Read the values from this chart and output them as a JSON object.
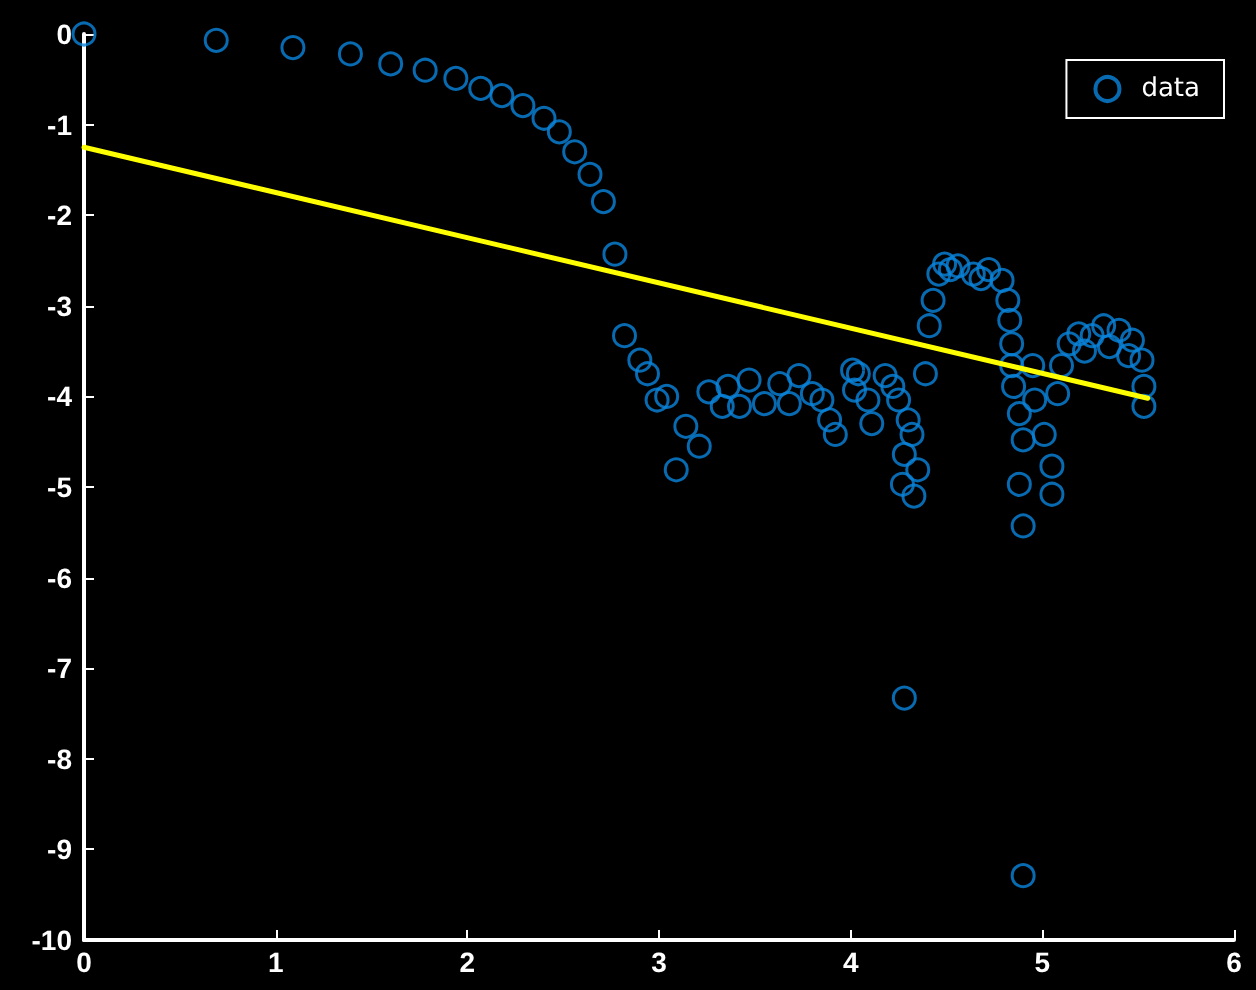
{
  "chart_data": {
    "type": "scatter",
    "xlim": [
      0,
      6
    ],
    "ylim": [
      -10,
      0
    ],
    "xticks": [
      0,
      1,
      2,
      3,
      4,
      5,
      6
    ],
    "yticks": [
      -10,
      -9,
      -8,
      -7,
      -6,
      -5,
      -4,
      -3,
      -2,
      -1,
      0
    ],
    "grid": false,
    "legend": "top right",
    "marker": "circle",
    "series": [
      {
        "name": "data",
        "color": "#0a84dc",
        "x": [
          0,
          0.69,
          1.09,
          1.39,
          1.6,
          1.78,
          1.94,
          2.07,
          2.18,
          2.29,
          2.4,
          2.48,
          2.56,
          2.64,
          2.71,
          2.77,
          2.82,
          2.9,
          2.94,
          2.99,
          3.04,
          3.14,
          3.21,
          3.09,
          3.26,
          3.36,
          3.33,
          3.42,
          3.47,
          3.55,
          3.63,
          3.68,
          3.73,
          3.8,
          3.85,
          3.89,
          3.92,
          4.01,
          4.02,
          4.04,
          4.09,
          4.11,
          4.18,
          4.22,
          4.25,
          4.3,
          4.32,
          4.28,
          4.35,
          4.27,
          4.33,
          4.28,
          4.39,
          4.41,
          4.43,
          4.46,
          4.49,
          4.52,
          4.56,
          4.64,
          4.68,
          4.72,
          4.79,
          4.82,
          4.83,
          4.84,
          4.84,
          4.85,
          4.88,
          4.9,
          4.88,
          4.9,
          4.9,
          4.95,
          4.96,
          5.01,
          5.05,
          5.05,
          5.08,
          5.1,
          5.14,
          5.19,
          5.22,
          5.26,
          5.32,
          5.35,
          5.4,
          5.45,
          5.47,
          5.52,
          5.53,
          5.53
        ],
        "values": [
          0,
          -0.07,
          -0.15,
          -0.22,
          -0.33,
          -0.4,
          -0.49,
          -0.6,
          -0.68,
          -0.79,
          -0.93,
          -1.08,
          -1.3,
          -1.55,
          -1.85,
          -2.43,
          -3.33,
          -3.6,
          -3.75,
          -4.04,
          -4,
          -4.33,
          -4.55,
          -4.81,
          -3.95,
          -3.89,
          -4.11,
          -4.11,
          -3.82,
          -4.08,
          -3.86,
          -4.08,
          -3.77,
          -3.97,
          -4.04,
          -4.26,
          -4.42,
          -3.71,
          -3.93,
          -3.75,
          -4.04,
          -4.3,
          -3.77,
          -3.89,
          -4.04,
          -4.26,
          -4.42,
          -4.64,
          -4.81,
          -4.97,
          -5.1,
          -7.33,
          -3.75,
          -3.22,
          -2.94,
          -2.65,
          -2.54,
          -2.6,
          -2.56,
          -2.65,
          -2.7,
          -2.6,
          -2.72,
          -2.94,
          -3.16,
          -3.42,
          -3.66,
          -3.89,
          -4.19,
          -4.48,
          -4.97,
          -5.43,
          -9.29,
          -3.66,
          -4.04,
          -4.42,
          -4.77,
          -5.08,
          -3.97,
          -3.66,
          -3.42,
          -3.31,
          -3.5,
          -3.33,
          -3.22,
          -3.45,
          -3.27,
          -3.55,
          -3.38,
          -3.6,
          -3.89,
          -4.11
        ]
      },
      {
        "type": "line",
        "color": "#ffff00",
        "marker": "none",
        "line_style": "solid",
        "x": [
          0,
          5.55
        ],
        "values": [
          -1.25,
          -4.02
        ]
      }
    ]
  }
}
